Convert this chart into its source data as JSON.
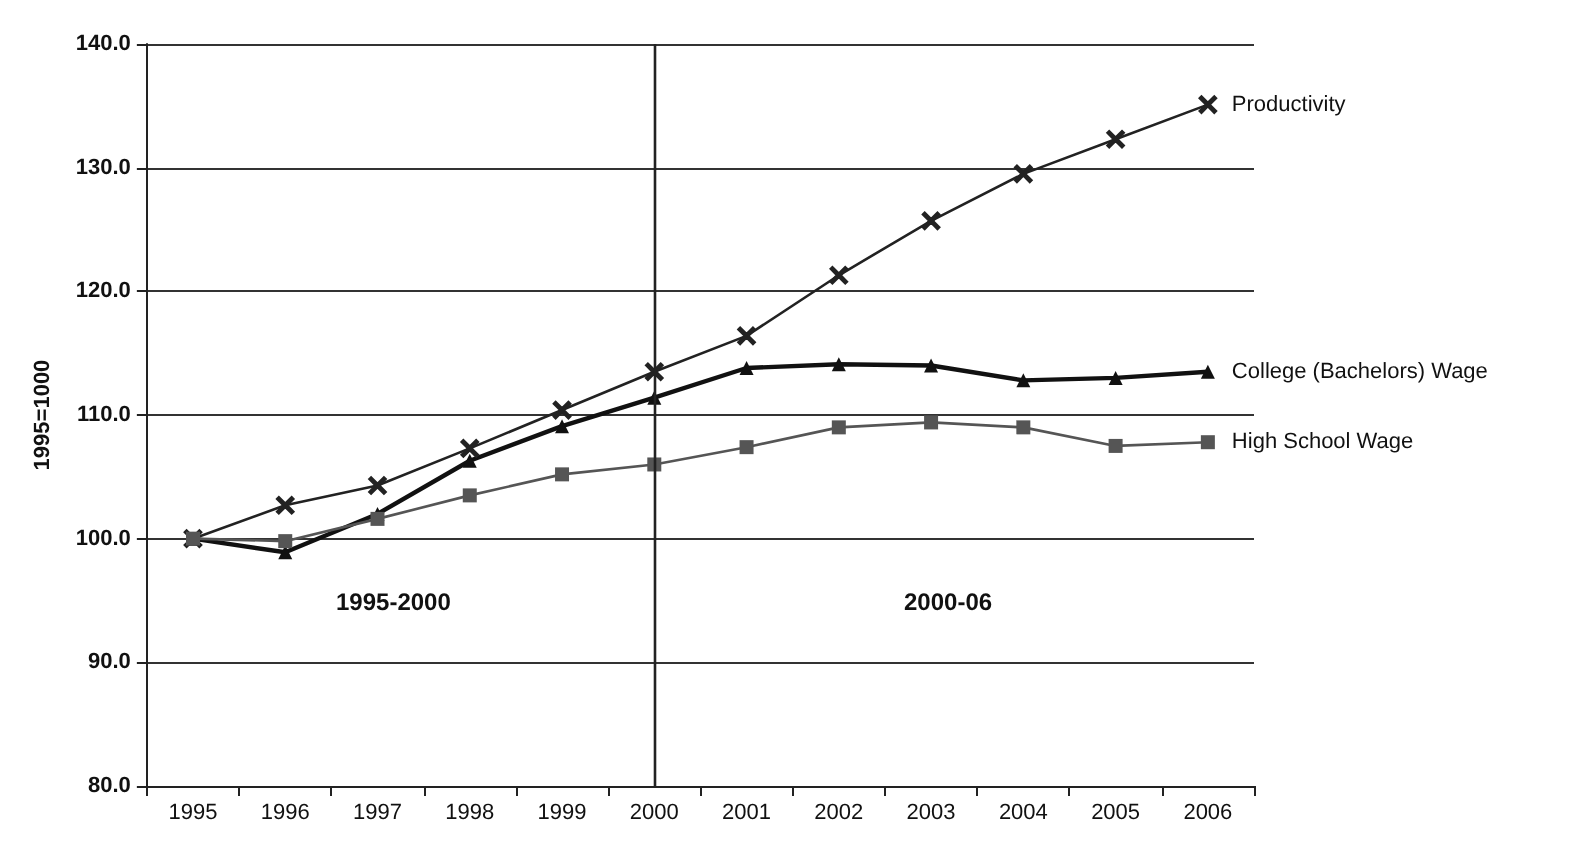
{
  "chart_data": {
    "type": "line",
    "ylabel": "1995=1000",
    "categories": [
      "1995",
      "1996",
      "1997",
      "1998",
      "1999",
      "2000",
      "2001",
      "2002",
      "2003",
      "2004",
      "2005",
      "2006"
    ],
    "series": [
      {
        "name": "Productivity",
        "color": "#222222",
        "marker": "cross",
        "values": [
          100,
          102.7,
          104.3,
          107.3,
          110.4,
          113.5,
          116.4,
          121.3,
          125.7,
          129.5,
          132.3,
          135.1
        ]
      },
      {
        "name": "College (Bachelors) Wage",
        "color": "#111111",
        "marker": "triangle",
        "values": [
          100,
          98.9,
          102,
          106.3,
          109.1,
          111.4,
          113.8,
          114.1,
          114,
          112.8,
          113,
          113.5
        ]
      },
      {
        "name": "High School Wage",
        "color": "#555555",
        "marker": "square",
        "values": [
          100,
          99.8,
          101.6,
          103.5,
          105.2,
          106,
          107.4,
          109,
          109.4,
          109,
          107.5,
          107.8
        ]
      }
    ],
    "ylim": [
      80,
      140
    ],
    "yticks": [
      {
        "value": 80,
        "label": "80.0"
      },
      {
        "value": 90,
        "label": "90.0"
      },
      {
        "value": 100,
        "label": "100.0"
      },
      {
        "value": 110,
        "label": "110.0"
      },
      {
        "value": 120,
        "label": "120.0"
      },
      {
        "value": 130,
        "label": "130.0"
      },
      {
        "value": 140,
        "label": "140.0"
      }
    ],
    "grid": "y",
    "legend": false,
    "line_style": "solid",
    "ref_lines": [
      {
        "axis": "x",
        "value": "2000",
        "color": "#222222"
      }
    ],
    "annotations": [
      "1995-2000",
      "2000-06"
    ]
  }
}
